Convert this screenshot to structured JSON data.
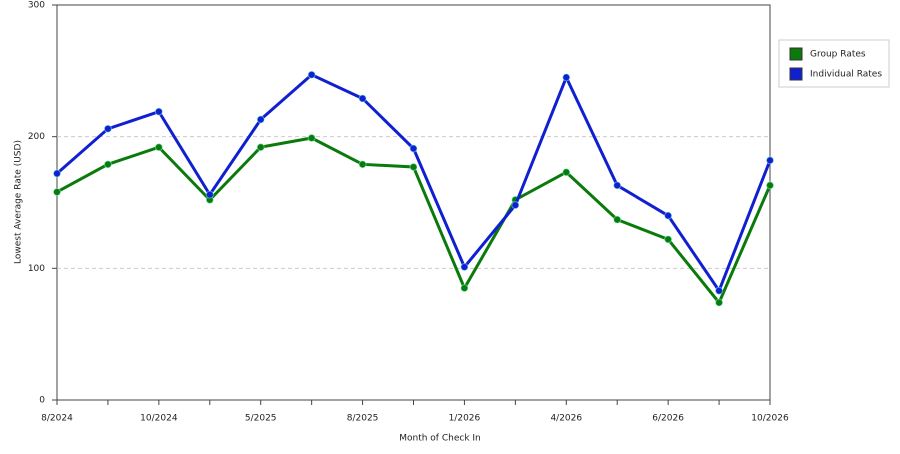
{
  "chart_data": {
    "type": "line",
    "x_label": "Month of Check In",
    "y_label": "Lowest Average Rate (USD)",
    "categories": [
      "8/2024",
      null,
      "10/2024",
      null,
      "5/2025",
      null,
      "8/2025",
      null,
      "1/2026",
      null,
      "4/2026",
      null,
      "6/2026",
      null,
      "10/2026"
    ],
    "series": [
      {
        "name": "Group Rates",
        "color": "#0a7a0a",
        "values": [
          158,
          179,
          192,
          152,
          192,
          199,
          179,
          177,
          85,
          152,
          173,
          137,
          122,
          74,
          163
        ]
      },
      {
        "name": "Individual Rates",
        "color": "#1020d0",
        "values": [
          172,
          206,
          219,
          156,
          213,
          247,
          229,
          191,
          101,
          148,
          245,
          163,
          140,
          83,
          182
        ]
      }
    ],
    "ylim": [
      0,
      300
    ],
    "yticks": [
      0,
      100,
      200,
      300
    ],
    "grid": true,
    "legend": "right"
  }
}
